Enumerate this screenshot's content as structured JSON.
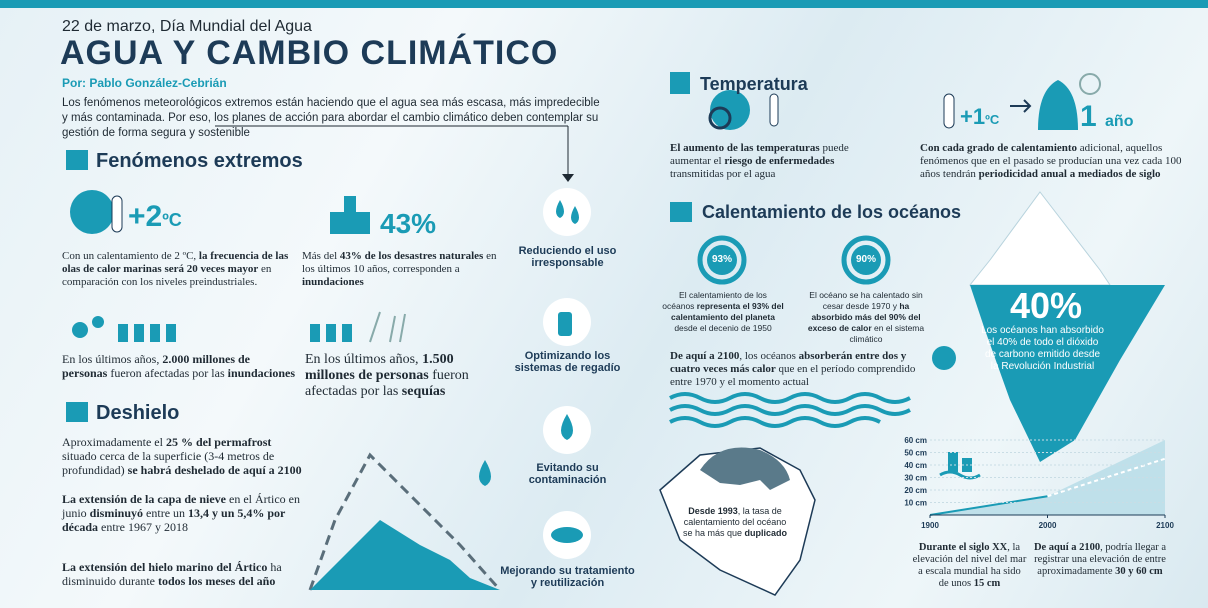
{
  "header": {
    "date": "22 de marzo, Día Mundial del Agua",
    "title": "AGUA Y CAMBIO CLIMÁTICO",
    "author": "Por: Pablo González-Cebrián",
    "intro": "Los fenómenos meteorológicos extremos están haciendo que el agua sea más escasa, más impredecible y más contaminada. Por eso, los planes de acción para abordar el cambio climático deben contemplar su gestión de forma segura y sostenible"
  },
  "extremos": {
    "heading": "Fenómenos extremos",
    "heat": {
      "big": "+2",
      "unit": "ºC",
      "text": [
        "Con un calentamiento de 2 ºC, ",
        {
          "text": "la frecuencia de las olas de calor marinas será 20 veces mayor",
          "bold": true
        },
        " en comparación con los niveles preindustriales."
      ]
    },
    "disasters": {
      "big": "43%",
      "text": [
        "Más del ",
        {
          "text": "43% de los desastres naturales",
          "bold": true
        },
        " en los últimos 10 años, corresponden a ",
        {
          "text": "inundaciones",
          "bold": true
        }
      ]
    },
    "floods": {
      "text": [
        "En los últimos años, ",
        {
          "text": "2.000 millones de personas",
          "bold": true
        },
        " fueron afectadas por las ",
        {
          "text": "inundaciones",
          "bold": true
        }
      ]
    },
    "droughts": {
      "text": [
        "En los últimos años, ",
        {
          "text": "1.500 millones de personas",
          "bold": true
        },
        " fueron afectadas por las ",
        {
          "text": "sequías",
          "bold": true
        }
      ]
    }
  },
  "deshielo": {
    "heading": "Deshielo",
    "items": [
      [
        "Aproximadamente el ",
        {
          "text": "25 % del permafrost",
          "bold": true
        },
        " situado cerca de la superficie (3-4 metros de profundidad) ",
        {
          "text": "se habrá deshelado de aquí a 2100",
          "bold": true
        }
      ],
      [
        {
          "text": "La extensión de la capa de nieve",
          "bold": true
        },
        " en el Ártico en junio ",
        {
          "text": "disminuyó",
          "bold": true
        },
        " entre un ",
        {
          "text": "13,4 y un 5,4% por década",
          "bold": true
        },
        " entre 1967 y 2018"
      ],
      [
        {
          "text": "La extensión del hielo marino del Ártico",
          "bold": true
        },
        " ha disminuido durante ",
        {
          "text": "todos los meses del año",
          "bold": true
        }
      ]
    ]
  },
  "acciones": [
    "Reduciendo el uso irresponsable",
    "Optimizando los sistemas de regadío",
    "Evitando su contaminación",
    "Mejorando su tratamiento y reutilización"
  ],
  "temperatura": {
    "heading": "Temperatura",
    "disease": [
      {
        "text": "El aumento de las temperaturas",
        "bold": true
      },
      " puede aumentar el ",
      {
        "text": "riesgo de enfermedades",
        "bold": true
      },
      " transmitidas por el agua"
    ],
    "yearly": {
      "big": "+1",
      "unit": "ºC",
      "num": "1",
      "num_unit": "año",
      "text": [
        {
          "text": "Con cada grado de calentamiento",
          "bold": true
        },
        " adicional, aquellos fenómenos que en el pasado se producían una vez cada 100 años tendrán ",
        {
          "text": "periodicidad anual a mediados de siglo",
          "bold": true
        }
      ]
    }
  },
  "oceanos": {
    "heading": "Calentamiento de los océanos",
    "circles": [
      {
        "label": "93%",
        "text": [
          "El calentamiento de los océanos ",
          {
            "text": "representa el 93% del calentamiento del planeta",
            "bold": true
          },
          " desde el decenio de 1950"
        ]
      },
      {
        "label": "90%",
        "text": [
          "El océano se ha calentado sin cesar desde 1970 y ",
          {
            "text": "ha absorbido más del 90% del exceso de calor",
            "bold": true
          },
          " en el sistema climático"
        ]
      }
    ],
    "future": [
      {
        "text": "De aquí a 2100",
        "bold": true
      },
      ", los océanos ",
      {
        "text": "absorberán entre dos y cuatro veces más calor",
        "bold": true
      },
      " que en el período comprendido entre 1970 y el momento actual"
    ],
    "co2": {
      "big": "40%",
      "text": "Los océanos han absorbido el 40% de todo el dióxido de carbono emitido desde la Revolución Industrial"
    },
    "bear": [
      {
        "text": "Desde 1993",
        "bold": true
      },
      ", la tasa de calentamiento del océano se ha más que ",
      {
        "text": "duplicado",
        "bold": true
      }
    ],
    "sea_level": {
      "yticks": [
        {
          "value": 10,
          "label": "10 cm"
        },
        {
          "value": 20,
          "label": "20 cm"
        },
        {
          "value": 30,
          "label": "30 cm"
        },
        {
          "value": 40,
          "label": "40 cm"
        },
        {
          "value": 50,
          "label": "50 cm"
        },
        {
          "value": 60,
          "label": "60 cm"
        }
      ],
      "ylim": [
        0,
        60
      ],
      "xticks": [
        1900,
        2000,
        2100
      ],
      "xlim": [
        1900,
        2100
      ]
    },
    "notes": [
      [
        {
          "text": "Durante el siglo XX",
          "bold": true
        },
        ", la elevación del nivel del mar a escala mundial ha sido de unos ",
        {
          "text": "15 cm",
          "bold": true
        }
      ],
      [
        {
          "text": "De aquí a 2100",
          "bold": true
        },
        ", podría llegar a registrar una elevación de entre aproximadamente ",
        {
          "text": "30 y 60 cm",
          "bold": true
        }
      ]
    ]
  }
}
